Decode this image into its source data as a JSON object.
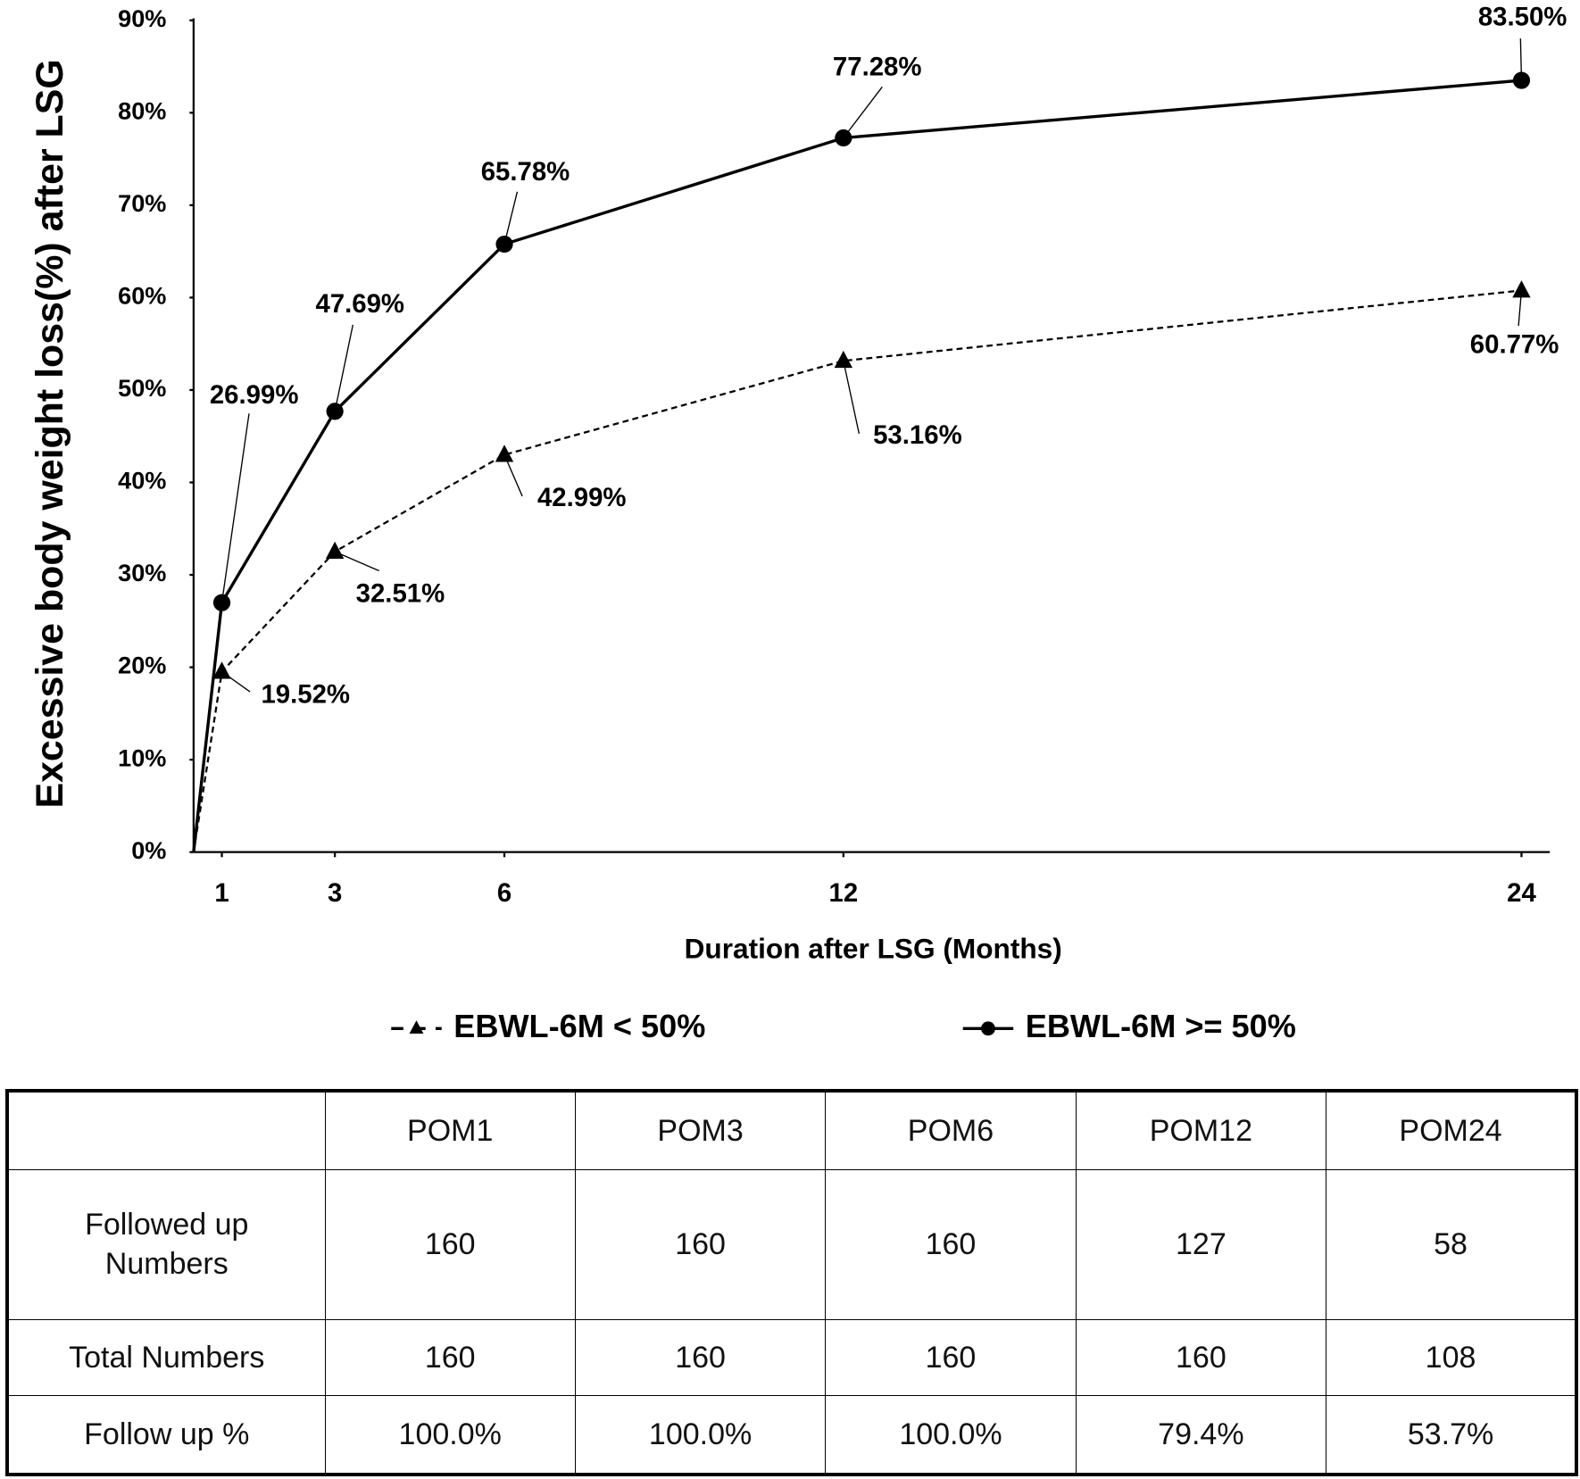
{
  "chart_data": {
    "type": "line",
    "x_label": "Duration after LSG (Months)",
    "y_label": "Excessive body weight loss(%) after LSG",
    "x": [
      0.5,
      1,
      3,
      6,
      12,
      24
    ],
    "xlim": [
      0.5,
      24.5
    ],
    "xticks": [
      1,
      3,
      6,
      12,
      24
    ],
    "ylim": [
      0,
      90
    ],
    "yticks": [
      {
        "value": 0,
        "label": "0%"
      },
      {
        "value": 10,
        "label": "10%"
      },
      {
        "value": 20,
        "label": "20%"
      },
      {
        "value": 30,
        "label": "30%"
      },
      {
        "value": 40,
        "label": "40%"
      },
      {
        "value": 50,
        "label": "50%"
      },
      {
        "value": 60,
        "label": "60%"
      },
      {
        "value": 70,
        "label": "70%"
      },
      {
        "value": 80,
        "label": "80%"
      },
      {
        "value": 90,
        "label": "90%"
      }
    ],
    "grid": false,
    "series": [
      {
        "name": "EBWL-6M < 50%",
        "color": "#000000",
        "dash": true,
        "marker": "triangle",
        "values": [
          0,
          19.52,
          32.51,
          42.99,
          53.16,
          60.77
        ],
        "value_labels": [
          null,
          "19.52%",
          "32.51%",
          "42.99%",
          "53.16%",
          "60.77%"
        ]
      },
      {
        "name": "EBWL-6M >= 50%",
        "color": "#000000",
        "dash": false,
        "marker": "circle",
        "values": [
          0,
          26.99,
          47.69,
          65.78,
          77.28,
          83.5
        ],
        "value_labels": [
          null,
          "26.99%",
          "47.69%",
          "65.78%",
          "77.28%",
          "83.50%"
        ]
      }
    ]
  },
  "table": {
    "columns": [
      "POM1",
      "POM3",
      "POM6",
      "POM12",
      "POM24"
    ],
    "rows": [
      {
        "label": "Followed up Numbers",
        "cells": [
          160,
          160,
          160,
          127,
          58
        ]
      },
      {
        "label": "Total Numbers",
        "cells": [
          160,
          160,
          160,
          160,
          108
        ]
      },
      {
        "label": "Follow up %",
        "cells": [
          "100.0%",
          "100.0%",
          "100.0%",
          "79.4%",
          "53.7%"
        ]
      }
    ]
  }
}
